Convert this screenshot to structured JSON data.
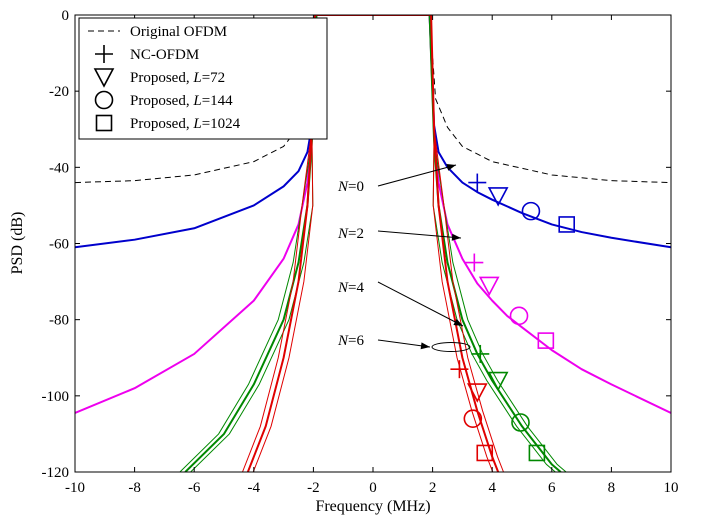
{
  "chart_data": {
    "type": "line",
    "xlabel": "Frequency (MHz)",
    "ylabel": "PSD (dB)",
    "xlim": [
      -10,
      10
    ],
    "ylim": [
      -120,
      0
    ],
    "xticks": [
      -10,
      -8,
      -6,
      -4,
      -2,
      0,
      2,
      4,
      6,
      8,
      10
    ],
    "yticks": [
      0,
      -20,
      -40,
      -60,
      -80,
      -100,
      -120
    ],
    "x_tick_labels": [
      "-10",
      "-8",
      "-6",
      "-4",
      "-2",
      "0",
      "2",
      "4",
      "6",
      "8",
      "10"
    ],
    "y_tick_labels": [
      "0",
      "-20",
      "-40",
      "-60",
      "-80",
      "-100",
      "-120"
    ],
    "grid": false,
    "legend_position": "top-left",
    "legend": [
      {
        "marker": "dashed-line",
        "text": "Original OFDM"
      },
      {
        "marker": "plus",
        "text": "NC-OFDM"
      },
      {
        "marker": "triangle-down",
        "text": "Proposed, ",
        "italic_var": "L",
        "suffix": "=72"
      },
      {
        "marker": "circle",
        "text": "Proposed, ",
        "italic_var": "L",
        "suffix": "=144"
      },
      {
        "marker": "square",
        "text": "Proposed, ",
        "italic_var": "L",
        "suffix": "=1024"
      }
    ],
    "annotations": [
      {
        "var": "N",
        "text": "=0"
      },
      {
        "var": "N",
        "text": "=2"
      },
      {
        "var": "N",
        "text": "=4"
      },
      {
        "var": "N",
        "text": "=6"
      }
    ],
    "series": [
      {
        "color": "#000000",
        "style": "dashed",
        "x": [
          -10,
          -8,
          -6,
          -4,
          -3,
          -2.5,
          -2.1,
          -1.9,
          1.9,
          2.1,
          2.5,
          3,
          4,
          6,
          8,
          10
        ],
        "y": [
          -44,
          -43.5,
          -42,
          -38.5,
          -34.5,
          -29.5,
          -22,
          0,
          0,
          -22,
          -29.5,
          -34.5,
          -38.5,
          -42,
          -43.5,
          -44
        ]
      },
      {
        "color": "#0000cc",
        "style": "solid",
        "x": [
          -10,
          -8,
          -6,
          -4,
          -3,
          -2.5,
          -2.2,
          -2.05,
          -1.9,
          1.9,
          2.05,
          2.2,
          2.5,
          3,
          3.5,
          4,
          5,
          6,
          7,
          8,
          10
        ],
        "y": [
          -61,
          -59,
          -56,
          -50,
          -45,
          -41,
          -36,
          -29,
          0,
          0,
          -29,
          -36,
          -40,
          -44,
          -46.5,
          -48.5,
          -52,
          -55,
          -57,
          -58.5,
          -61
        ]
      },
      {
        "color": "#ee00ee",
        "style": "solid",
        "x": [
          -10,
          -8,
          -6,
          -4,
          -3,
          -2.5,
          -2.2,
          -2.05,
          -1.9,
          1.9,
          2.05,
          2.2,
          2.5,
          3,
          3.5,
          4,
          4.5,
          5,
          6,
          7,
          8,
          10
        ],
        "y": [
          -104.5,
          -98,
          -89,
          -75,
          -64,
          -55,
          -44,
          -31,
          0,
          0,
          -31,
          -44,
          -55,
          -64,
          -70.5,
          -75,
          -79,
          -82,
          -88,
          -93,
          -97,
          -104.5
        ]
      },
      {
        "color": "#008800",
        "style": "solid",
        "x": [
          -6.3,
          -5,
          -4,
          -3,
          -2.5,
          -2.2,
          -2.05,
          -1.9,
          1.9,
          2.05,
          2.2,
          2.5,
          3,
          3.5,
          4,
          4.5,
          5,
          5.5,
          6,
          6.3
        ],
        "y": [
          -120,
          -110,
          -97,
          -80,
          -65,
          -50,
          -33,
          0,
          0,
          -33,
          -50,
          -65,
          -80,
          -89,
          -96,
          -102,
          -108,
          -113,
          -118,
          -120
        ]
      },
      {
        "color": "#e00000",
        "style": "solid",
        "x": [
          -4.2,
          -3.6,
          -3,
          -2.5,
          -2.2,
          -2.05,
          -1.95,
          1.95,
          2.05,
          2.2,
          2.5,
          3,
          3.5,
          4,
          4.2
        ],
        "y": [
          -120,
          -108,
          -90,
          -70,
          -50,
          -30,
          0,
          0,
          -30,
          -50,
          -70,
          -90,
          -104,
          -116,
          -120
        ]
      }
    ],
    "markers": [
      {
        "shape": "plus",
        "color": "#0000cc",
        "x": 3.5,
        "y": -44
      },
      {
        "shape": "triangle-down",
        "color": "#0000cc",
        "x": 4.2,
        "y": -47.5
      },
      {
        "shape": "circle",
        "color": "#0000cc",
        "x": 5.3,
        "y": -51.5
      },
      {
        "shape": "square",
        "color": "#0000cc",
        "x": 6.5,
        "y": -55
      },
      {
        "shape": "plus",
        "color": "#ee00ee",
        "x": 3.4,
        "y": -65
      },
      {
        "shape": "triangle-down",
        "color": "#ee00ee",
        "x": 3.9,
        "y": -71
      },
      {
        "shape": "circle",
        "color": "#ee00ee",
        "x": 4.9,
        "y": -79
      },
      {
        "shape": "square",
        "color": "#ee00ee",
        "x": 5.8,
        "y": -85.5
      },
      {
        "shape": "plus",
        "color": "#008800",
        "x": 3.6,
        "y": -89
      },
      {
        "shape": "triangle-down",
        "color": "#008800",
        "x": 4.2,
        "y": -96
      },
      {
        "shape": "circle",
        "color": "#008800",
        "x": 4.95,
        "y": -107
      },
      {
        "shape": "square",
        "color": "#008800",
        "x": 5.5,
        "y": -115
      },
      {
        "shape": "plus",
        "color": "#e00000",
        "x": 2.9,
        "y": -93
      },
      {
        "shape": "triangle-down",
        "color": "#e00000",
        "x": 3.5,
        "y": -99
      },
      {
        "shape": "circle",
        "color": "#e00000",
        "x": 3.35,
        "y": -106
      },
      {
        "shape": "square",
        "color": "#e00000",
        "x": 3.75,
        "y": -115
      }
    ]
  }
}
